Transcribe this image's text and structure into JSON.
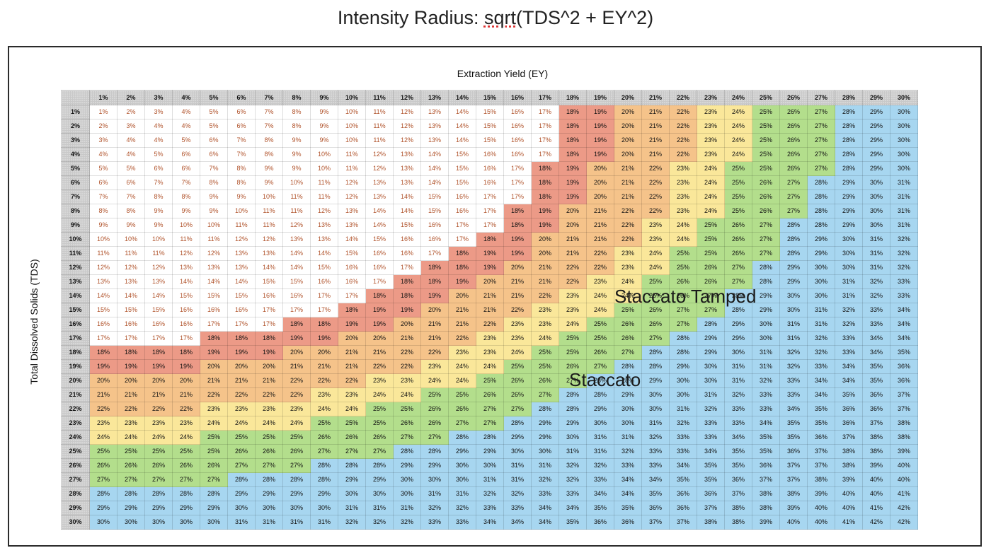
{
  "chart_data": {
    "type": "heatmap",
    "title_pre": "Intensity Radius: ",
    "title_underlined": "sqrt",
    "title_post": "(TDS^2 + EY^2)",
    "xlabel": "Extraction Yield (EY)",
    "ylabel": "Total Dissolved Solids (TDS)",
    "x": [
      1,
      2,
      3,
      4,
      5,
      6,
      7,
      8,
      9,
      10,
      11,
      12,
      13,
      14,
      15,
      16,
      17,
      18,
      19,
      20,
      21,
      22,
      23,
      24,
      25,
      26,
      27,
      28,
      29,
      30
    ],
    "y": [
      1,
      2,
      3,
      4,
      5,
      6,
      7,
      8,
      9,
      10,
      11,
      12,
      13,
      14,
      15,
      16,
      17,
      18,
      19,
      20,
      21,
      22,
      23,
      24,
      25,
      26,
      27,
      28,
      29,
      30
    ],
    "value_unit": "%",
    "values": "sqrt(TDS^2 + EY^2), rounded to nearest integer percent",
    "color_bands": [
      {
        "range": [
          0,
          17
        ],
        "color": "#ffffff"
      },
      {
        "range": [
          18,
          19
        ],
        "color": "#ec9a87"
      },
      {
        "range": [
          20,
          22
        ],
        "color": "#f5c38a"
      },
      {
        "range": [
          23,
          24
        ],
        "color": "#fae79a"
      },
      {
        "range": [
          25,
          27
        ],
        "color": "#b3de8c"
      },
      {
        "range": [
          28,
          42
        ],
        "color": "#a7d6f0"
      }
    ],
    "annotations": [
      "Staccato Tamped",
      "Staccato"
    ]
  }
}
